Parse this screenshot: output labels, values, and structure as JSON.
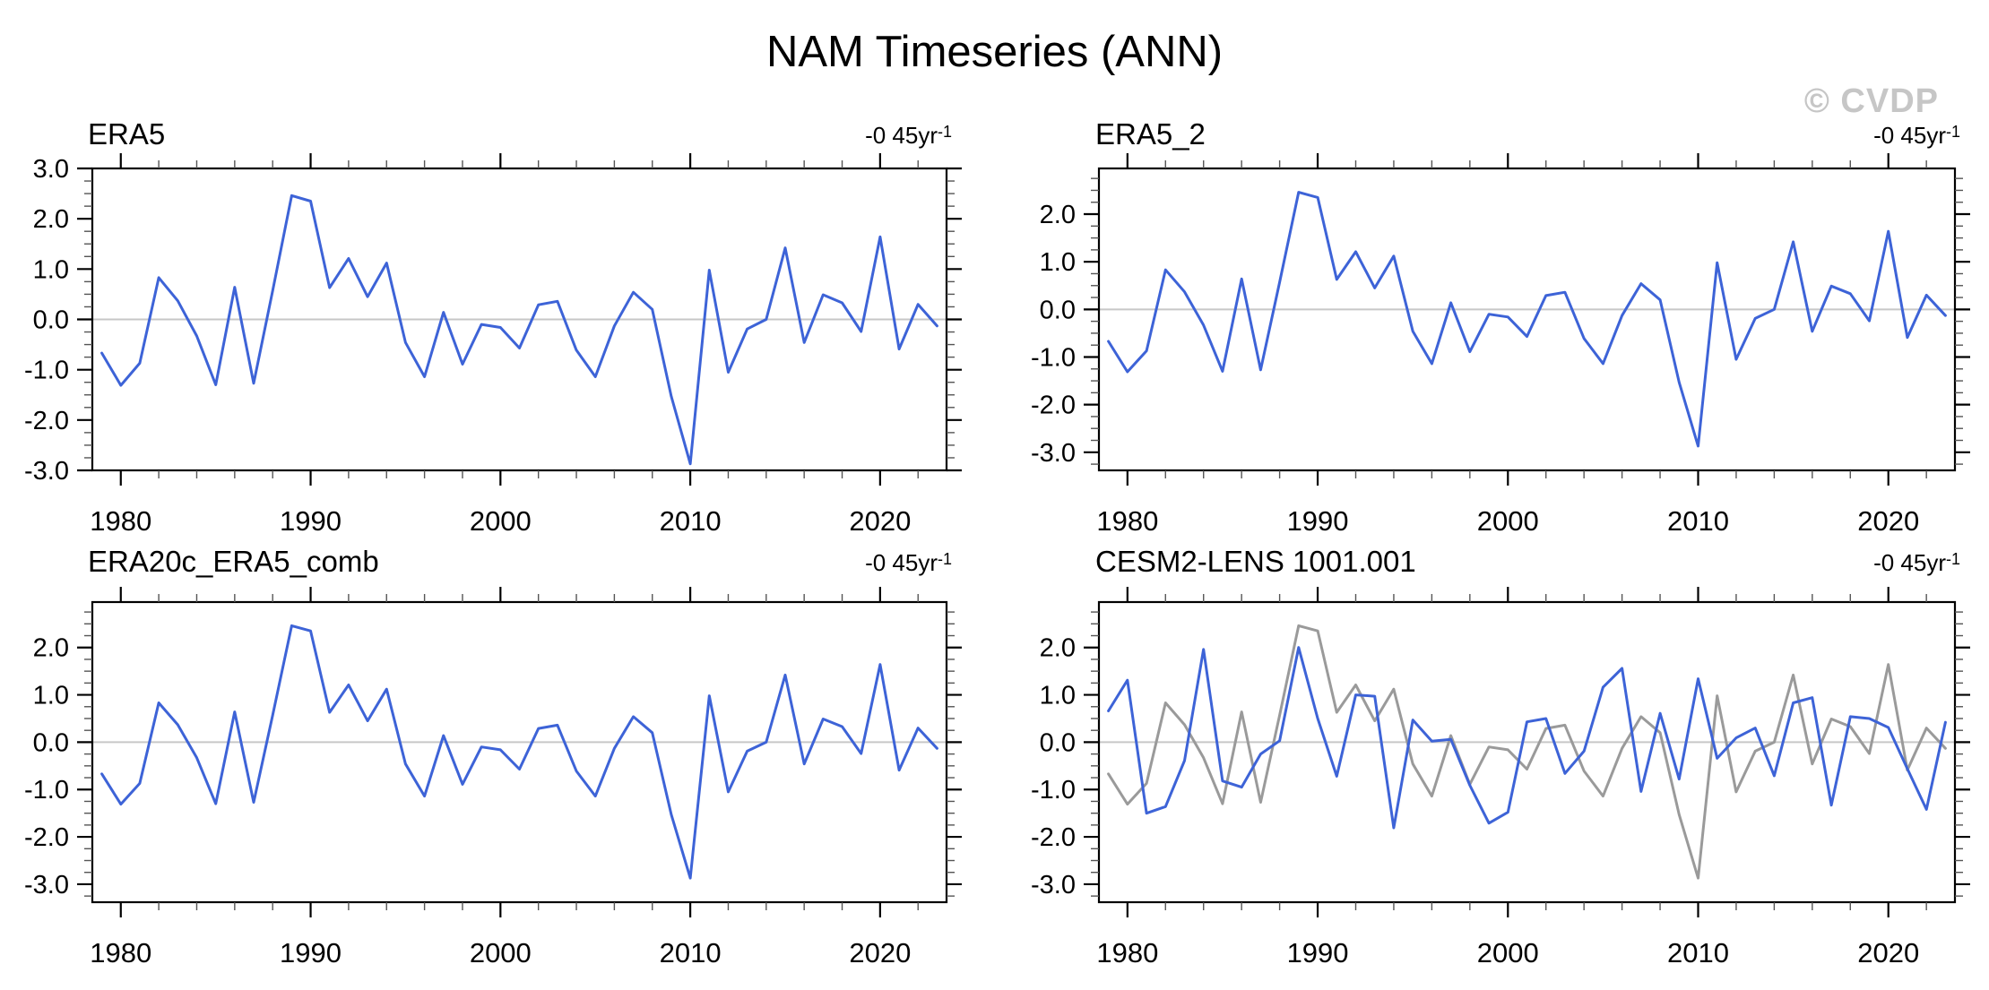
{
  "page_title": "NAM Timeseries (ANN)",
  "watermark": "© CVDP",
  "chart_data": {
    "type": "line",
    "x_years": [
      1979,
      1980,
      1981,
      1982,
      1983,
      1984,
      1985,
      1986,
      1987,
      1988,
      1989,
      1990,
      1991,
      1992,
      1993,
      1994,
      1995,
      1996,
      1997,
      1998,
      1999,
      2000,
      2001,
      2002,
      2003,
      2004,
      2005,
      2006,
      2007,
      2008,
      2009,
      2010,
      2011,
      2012,
      2013,
      2014,
      2015,
      2016,
      2017,
      2018,
      2019,
      2020,
      2021,
      2022,
      2023
    ],
    "xlim": [
      1978.5,
      2023.5
    ],
    "xticks_labeled": [
      1980,
      1990,
      2000,
      2010,
      2020
    ],
    "xtick_minor_step_years": 2,
    "ytick_minor_step": 0.25,
    "grid": "zero-reference-line-only",
    "zero_line_color": "#c7c7c7",
    "values": {
      "era5": [
        -0.67,
        -1.31,
        -0.87,
        0.83,
        0.37,
        -0.33,
        -1.3,
        0.64,
        -1.27,
        0.57,
        2.46,
        2.35,
        0.63,
        1.21,
        0.45,
        1.12,
        -0.46,
        -1.14,
        0.14,
        -0.89,
        -0.1,
        -0.16,
        -0.57,
        0.29,
        0.36,
        -0.61,
        -1.14,
        -0.13,
        0.54,
        0.2,
        -1.53,
        -2.87,
        0.98,
        -1.05,
        -0.19,
        0.0,
        1.42,
        -0.46,
        0.49,
        0.33,
        -0.24,
        1.64,
        -0.59,
        0.3,
        -0.13
      ],
      "cesm2_lens": [
        0.66,
        1.31,
        -1.5,
        -1.36,
        -0.39,
        1.96,
        -0.82,
        -0.95,
        -0.25,
        0.03,
        2.0,
        0.5,
        -0.72,
        1.0,
        0.97,
        -1.81,
        0.47,
        0.02,
        0.06,
        -0.91,
        -1.71,
        -1.48,
        0.43,
        0.5,
        -0.66,
        -0.19,
        1.16,
        1.56,
        -1.04,
        0.61,
        -0.78,
        1.34,
        -0.34,
        0.09,
        0.3,
        -0.71,
        0.83,
        0.94,
        -1.33,
        0.54,
        0.5,
        0.31,
        -0.56,
        -1.42,
        0.42
      ]
    },
    "panels": [
      {
        "title": "ERA5",
        "trend": "-0 45yr",
        "trend_sup": "-1",
        "ylim": [
          -3.0,
          3.0
        ],
        "ytick_labels": [
          "3.0",
          "2.0",
          "1.0",
          "0.0",
          "-1.0",
          "-2.0",
          "-3.0"
        ],
        "series": [
          {
            "key": "era5",
            "color": "#3d63d7"
          }
        ]
      },
      {
        "title": "ERA5_2",
        "trend": "-0 45yr",
        "trend_sup": "-1",
        "ylim": [
          -3.38,
          2.96
        ],
        "ytick_labels": [
          "2.0",
          "1.0",
          "0.0",
          "-1.0",
          "-2.0",
          "-3.0"
        ],
        "series": [
          {
            "key": "era5",
            "color": "#3d63d7"
          }
        ]
      },
      {
        "title": "ERA20c_ERA5_comb",
        "trend": "-0 45yr",
        "trend_sup": "-1",
        "ylim": [
          -3.38,
          2.96
        ],
        "ytick_labels": [
          "2.0",
          "1.0",
          "0.0",
          "-1.0",
          "-2.0",
          "-3.0"
        ],
        "series": [
          {
            "key": "era5",
            "color": "#3d63d7"
          }
        ]
      },
      {
        "title": "CESM2-LENS 1001.001",
        "trend": "-0 45yr",
        "trend_sup": "-1",
        "ylim": [
          -3.38,
          2.96
        ],
        "ytick_labels": [
          "2.0",
          "1.0",
          "0.0",
          "-1.0",
          "-2.0",
          "-3.0"
        ],
        "series": [
          {
            "key": "era5",
            "color": "#9a9a9a"
          },
          {
            "key": "cesm2_lens",
            "color": "#3d63d7"
          }
        ]
      }
    ]
  }
}
